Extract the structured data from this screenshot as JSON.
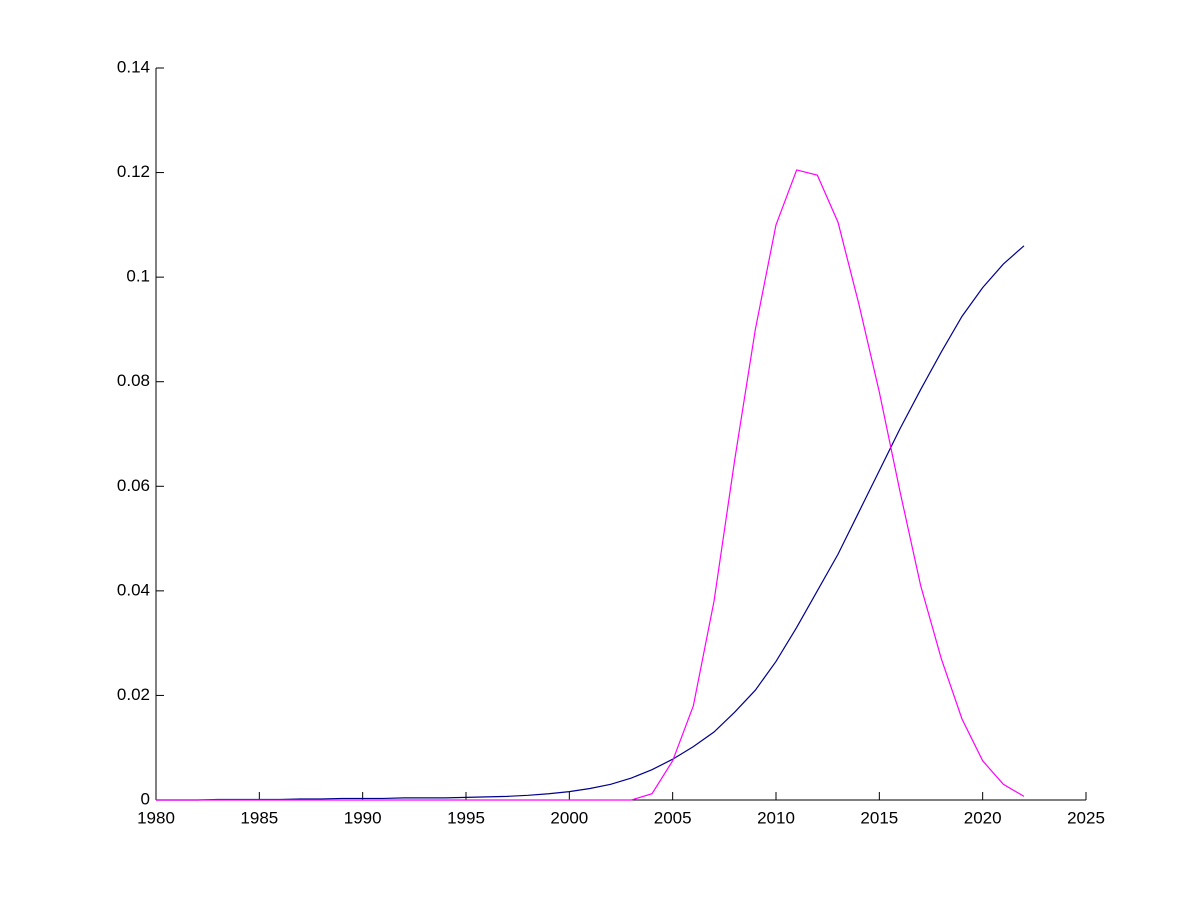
{
  "chart_data": {
    "type": "line",
    "x": [
      1980,
      1981,
      1982,
      1983,
      1984,
      1985,
      1986,
      1987,
      1988,
      1989,
      1990,
      1991,
      1992,
      1993,
      1994,
      1995,
      1996,
      1997,
      1998,
      1999,
      2000,
      2001,
      2002,
      2003,
      2004,
      2005,
      2006,
      2007,
      2008,
      2009,
      2010,
      2011,
      2012,
      2013,
      2014,
      2015,
      2016,
      2017,
      2018,
      2019,
      2020,
      2021,
      2022
    ],
    "series": [
      {
        "color": "#00008f",
        "values": [
          0,
          0,
          0,
          0.0001,
          0.0001,
          0.0001,
          0.0001,
          0.0002,
          0.0002,
          0.0003,
          0.0003,
          0.0003,
          0.0004,
          0.0004,
          0.0004,
          0.0005,
          0.0006,
          0.0007,
          0.0009,
          0.0012,
          0.0016,
          0.0022,
          0.003,
          0.0042,
          0.0058,
          0.0078,
          0.0102,
          0.013,
          0.0168,
          0.021,
          0.0265,
          0.033,
          0.04,
          0.047,
          0.055,
          0.063,
          0.071,
          0.0785,
          0.0857,
          0.0925,
          0.098,
          0.1025,
          0.106
        ]
      },
      {
        "color": "#ff00ff",
        "values": [
          0,
          0,
          0,
          0,
          0,
          0,
          0,
          0,
          0,
          0,
          0,
          0,
          0,
          0,
          0,
          0,
          0,
          0,
          0,
          0,
          0,
          0,
          0,
          0,
          0.0012,
          0.0075,
          0.018,
          0.038,
          0.065,
          0.09,
          0.11,
          0.1205,
          0.1195,
          0.1105,
          0.095,
          0.078,
          0.059,
          0.041,
          0.027,
          0.0155,
          0.0075,
          0.003,
          0.0007
        ]
      }
    ],
    "xlim": [
      1980,
      2025
    ],
    "xticks": [
      1980,
      1985,
      1990,
      1995,
      2000,
      2005,
      2010,
      2015,
      2020,
      2025
    ],
    "ylim": [
      0,
      0.14
    ],
    "yticks": [
      0,
      0.02,
      0.04,
      0.06,
      0.08,
      0.1,
      0.12,
      0.14
    ]
  }
}
